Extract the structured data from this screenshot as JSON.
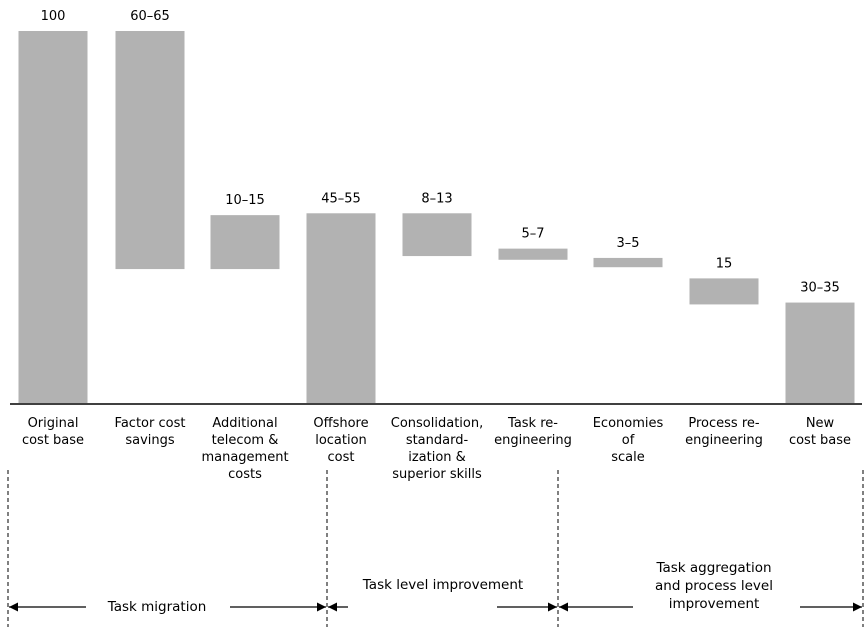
{
  "chart_data": {
    "type": "bar",
    "subtype": "waterfall",
    "title": "",
    "xlabel": "",
    "ylabel": "",
    "ylim": [
      0,
      100
    ],
    "bar_color": "#b2b2b2",
    "bars": [
      {
        "category": "Original cost base",
        "category_lines": [
          "Original",
          "cost base"
        ],
        "label": "100",
        "start": 0,
        "end": 100
      },
      {
        "category": "Factor cost savings",
        "category_lines": [
          "Factor cost",
          "savings"
        ],
        "label": "60–65",
        "start": 36,
        "end": 100
      },
      {
        "category": "Additional telecom & management costs",
        "category_lines": [
          "Additional",
          "telecom &",
          "management",
          "costs"
        ],
        "label": "10–15",
        "start": 36,
        "end": 50.5
      },
      {
        "category": "Offshore location cost",
        "category_lines": [
          "Offshore",
          "location",
          "cost"
        ],
        "label": "45–55",
        "start": 0,
        "end": 51
      },
      {
        "category": "Consolidation, standardization & superior skills",
        "category_lines": [
          "Consolidation,",
          "standard-",
          "ization &",
          "superior skills"
        ],
        "label": "8–13",
        "start": 39.5,
        "end": 51
      },
      {
        "category": "Task re-engineering",
        "category_lines": [
          "Task re-",
          "engineering"
        ],
        "label": "5–7",
        "start": 38.5,
        "end": 41.5
      },
      {
        "category": "Economies of scale",
        "category_lines": [
          "Economies",
          "of",
          "scale"
        ],
        "label": "3–5",
        "start": 36.5,
        "end": 39
      },
      {
        "category": "Process re-engineering",
        "category_lines": [
          "Process re-",
          "engineering"
        ],
        "label": "15",
        "start": 26.5,
        "end": 33.5
      },
      {
        "category": "New cost base",
        "category_lines": [
          "New",
          "cost base"
        ],
        "label": "30–35",
        "start": 0,
        "end": 27
      }
    ],
    "phases": [
      {
        "label_lines": [
          "Task migration"
        ],
        "from_bar": 0,
        "to_bar": 3
      },
      {
        "label_lines": [
          "Task level improvement"
        ],
        "from_bar": 3,
        "to_bar": 5
      },
      {
        "label_lines": [
          "Task aggregation",
          "and process level",
          "improvement"
        ],
        "from_bar": 5,
        "to_bar": 8
      }
    ]
  }
}
